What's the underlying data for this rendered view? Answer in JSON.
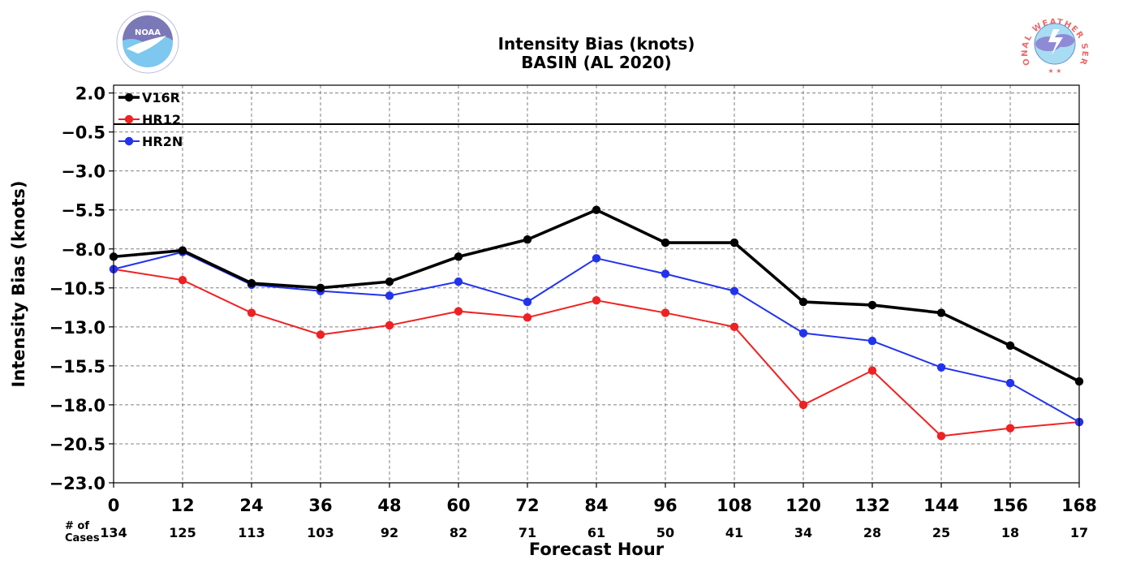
{
  "chart_data": {
    "type": "line",
    "title": "Intensity Bias (knots)",
    "subtitle": "BASIN (AL 2020)",
    "xlabel": "Forecast Hour",
    "ylabel": "Intensity Bias (knots)",
    "x": [
      0,
      12,
      24,
      36,
      48,
      60,
      72,
      84,
      96,
      108,
      120,
      132,
      144,
      156,
      168
    ],
    "x_ticks": [
      "0",
      "12",
      "24",
      "36",
      "48",
      "60",
      "72",
      "84",
      "96",
      "108",
      "120",
      "132",
      "144",
      "156",
      "168"
    ],
    "xlim": [
      0,
      168
    ],
    "ylim": [
      -23.0,
      2.5
    ],
    "y_ticks": [
      "2.0",
      "−0.5",
      "−3.0",
      "−5.5",
      "−8.0",
      "−10.5",
      "−13.0",
      "−15.5",
      "−18.0",
      "−20.5",
      "−23.0"
    ],
    "y_tick_values": [
      2.0,
      -0.5,
      -3.0,
      -5.5,
      -8.0,
      -10.5,
      -13.0,
      -15.5,
      -18.0,
      -20.5,
      -23.0
    ],
    "reference_line": 0,
    "grid": true,
    "legend_position": "top-left",
    "cases_label": "# of Cases",
    "cases_label_lines": [
      "# of",
      "Cases"
    ],
    "cases": [
      "134",
      "125",
      "113",
      "103",
      "92",
      "82",
      "71",
      "61",
      "50",
      "41",
      "34",
      "28",
      "25",
      "18",
      "17"
    ],
    "series": [
      {
        "name": "V16R",
        "color": "#000000",
        "width": 3.6,
        "values": [
          -8.5,
          -8.1,
          -10.2,
          -10.5,
          -10.1,
          -8.5,
          -7.4,
          -5.5,
          -7.6,
          -7.6,
          -11.4,
          -11.6,
          -12.1,
          -14.2,
          -16.5
        ]
      },
      {
        "name": "HR12",
        "color": "#ee2222",
        "width": 2,
        "values": [
          -9.3,
          -10.0,
          -12.1,
          -13.5,
          -12.9,
          -12.0,
          -12.4,
          -11.3,
          -12.1,
          -13.0,
          -18.0,
          -15.8,
          -20.0,
          -19.5,
          -19.1
        ]
      },
      {
        "name": "HR2N",
        "color": "#2233ee",
        "width": 2,
        "values": [
          -9.3,
          -8.2,
          -10.3,
          -10.7,
          -11.0,
          -10.1,
          -11.4,
          -8.6,
          -9.6,
          -10.7,
          -13.4,
          -13.9,
          -15.6,
          -16.6,
          -19.1
        ]
      }
    ]
  },
  "logos": {
    "left": {
      "icon": "noaa-logo-icon",
      "text": "NOAA"
    },
    "right": {
      "icon": "nws-logo-icon",
      "text": "NATIONAL WEATHER SERVICE"
    }
  }
}
